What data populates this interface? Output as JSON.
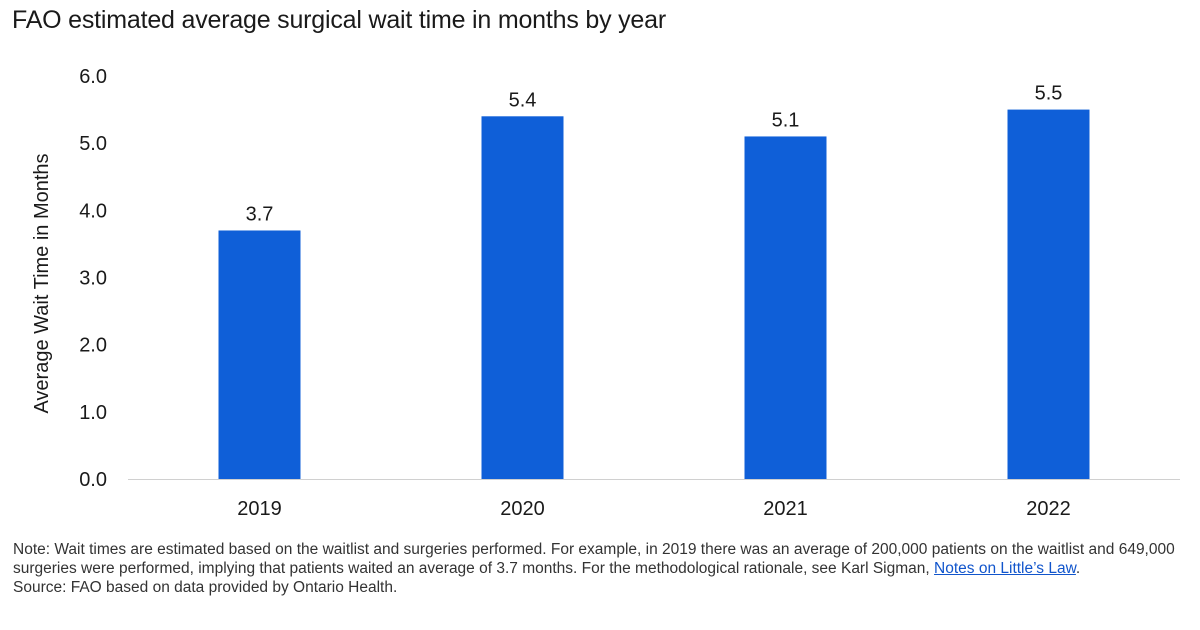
{
  "chart_data": {
    "type": "bar",
    "title": "FAO estimated average surgical wait time in months by year",
    "categories": [
      "2019",
      "2020",
      "2021",
      "2022"
    ],
    "values": [
      3.7,
      5.4,
      5.1,
      5.5
    ],
    "value_labels": [
      "3.7",
      "5.4",
      "5.1",
      "5.5"
    ],
    "xlabel": "",
    "ylabel": "Average Wait Time in Months",
    "ylim": [
      0,
      6
    ],
    "yticks": [
      0,
      1,
      2,
      3,
      4,
      5,
      6
    ],
    "ytick_labels": [
      "0.0",
      "1.0",
      "2.0",
      "3.0",
      "4.0",
      "5.0",
      "6.0"
    ],
    "grid": false,
    "legend": "none",
    "bar_color": "#0f5fd8",
    "axis_color": "#d0d0d0"
  },
  "notes": {
    "note_text": "Note: Wait times are estimated based on the waitlist and surgeries performed. For example, in 2019 there was an average of 200,000 patients on the waitlist and 649,000 surgeries were performed, implying that patients waited an average of 3.7 months. For the methodological rationale, see Karl Sigman, ",
    "link_text": "Notes on Little’s Law",
    "note_end": ".",
    "source": "Source: FAO based on data provided by Ontario Health."
  }
}
